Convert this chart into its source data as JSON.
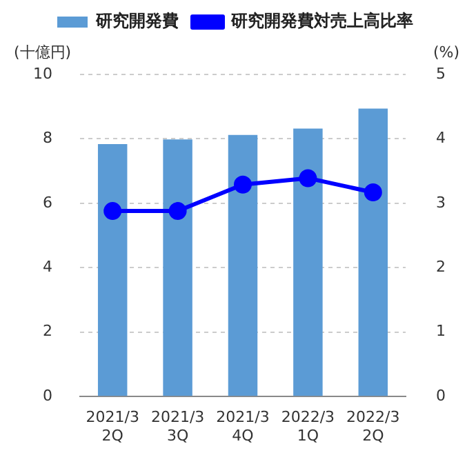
{
  "chart_data": {
    "type": "bar",
    "categories": [
      "2021/3 2Q",
      "2021/3 3Q",
      "2021/3 4Q",
      "2022/3 1Q",
      "2022/3 2Q"
    ],
    "series": [
      {
        "name": "研究開発費",
        "color": "#5b9bd5",
        "values": [
          7.84,
          7.98,
          8.12,
          8.32,
          8.94
        ]
      },
      {
        "name": "研究開発費対売上高比率",
        "type": "line",
        "axis": "y2",
        "color": "#0000ff",
        "values": [
          2.88,
          2.88,
          3.29,
          3.39,
          3.17
        ]
      }
    ],
    "ylabel": "(十億円)",
    "y2label": "(%)",
    "ylim": [
      0,
      10
    ],
    "yticks": [
      0,
      2,
      4,
      6,
      8,
      10
    ],
    "y2lim": [
      0,
      5
    ],
    "y2ticks": [
      0,
      1,
      2,
      3,
      4,
      5
    ],
    "grid": "y",
    "legend": "top",
    "marker": "circle"
  }
}
